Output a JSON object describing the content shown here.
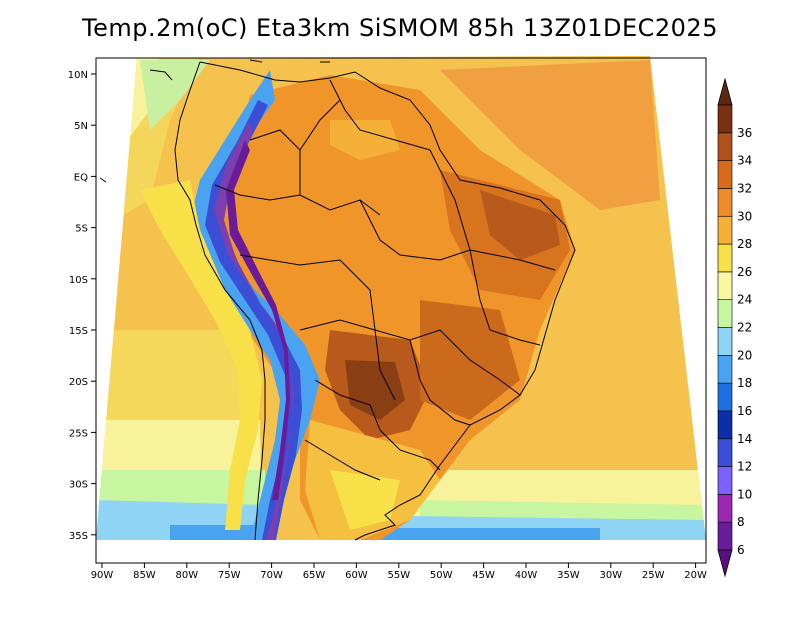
{
  "title": "Temp.2m(oC) Eta3km SiSMOM 85h 13Z01DEC2025",
  "lat_ticks": [
    "10N",
    "5N",
    "EQ",
    "5S",
    "10S",
    "15S",
    "20S",
    "25S",
    "30S",
    "35S"
  ],
  "lon_ticks": [
    "90W",
    "85W",
    "80W",
    "75W",
    "70W",
    "65W",
    "60W",
    "55W",
    "50W",
    "45W",
    "40W",
    "35W",
    "30W",
    "25W",
    "20W"
  ],
  "colorbar": {
    "labels": [
      "6",
      "8",
      "10",
      "12",
      "14",
      "16",
      "18",
      "20",
      "22",
      "24",
      "26",
      "28",
      "30",
      "32",
      "34",
      "36"
    ],
    "colors": [
      "#6a1b9a",
      "#9c27b0",
      "#7b61ff",
      "#3b4fd6",
      "#0b2eaa",
      "#1f6fe0",
      "#4aa3f0",
      "#8fd3f5",
      "#c8f5a0",
      "#f8f8a0",
      "#f8e048",
      "#f5b038",
      "#f08a2a",
      "#d86a1c",
      "#b0501a",
      "#7a3010"
    ],
    "under_color": "#5a0f80",
    "over_color": "#5a2a0e"
  }
}
